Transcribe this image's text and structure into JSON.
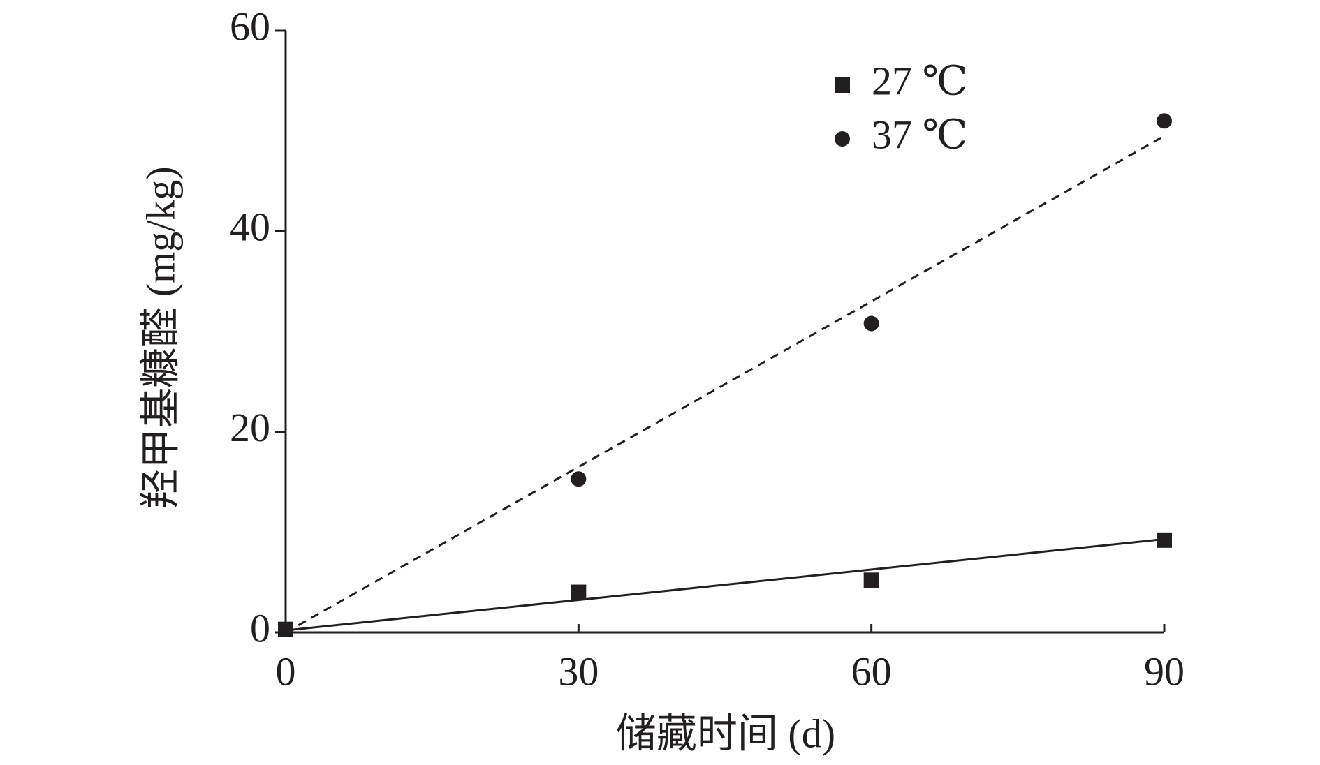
{
  "chart_data": {
    "type": "scatter",
    "x_label": "储藏时间 (d)",
    "y_label": "羟甲基糠醛 (mg/kg)",
    "xlim": [
      0,
      90
    ],
    "xticks": [
      0,
      30,
      60,
      90
    ],
    "ylim": [
      0,
      60
    ],
    "yticks": [
      0,
      20,
      40,
      60
    ],
    "legend": "top-right",
    "series": [
      {
        "name": "27 ℃",
        "color": "#231f20",
        "marker": "square",
        "line_style": "solid",
        "x": [
          0,
          30,
          60,
          90
        ],
        "values": [
          0.3,
          4,
          5.2,
          9.2
        ],
        "fit_x": [
          0,
          90
        ],
        "fit_values": [
          0.2,
          9.3
        ]
      },
      {
        "name": "37 ℃",
        "color": "#231f20",
        "marker": "circle",
        "line_style": "dashed",
        "x": [
          0,
          30,
          60,
          90
        ],
        "values": [
          0.3,
          15.3,
          30.8,
          51
        ],
        "fit_x": [
          0,
          90
        ],
        "fit_values": [
          0,
          49.5
        ]
      }
    ]
  }
}
